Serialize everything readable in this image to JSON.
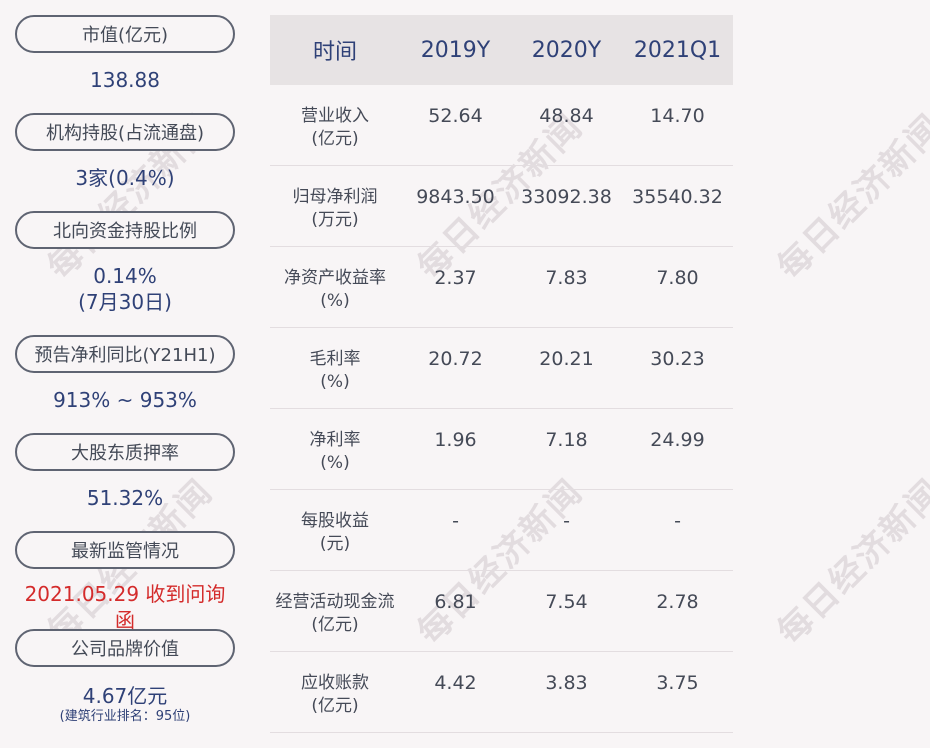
{
  "watermark_text": "每日经济新闻",
  "left_panel": {
    "items": [
      {
        "label": "市值(亿元)",
        "value": "138.88"
      },
      {
        "label": "机构持股(占流通盘)",
        "value": "3家(0.4%)"
      },
      {
        "label": "北向资金持股比例",
        "value": "0.14%",
        "value2": "(7月30日)"
      },
      {
        "label": "预告净利同比(Y21H1)",
        "value": "913% ~ 953%"
      },
      {
        "label": "大股东质押率",
        "value": "51.32%"
      },
      {
        "label": "最新监管情况",
        "value": "2021.05.29 收到问询函"
      },
      {
        "label": "公司品牌价值",
        "value": "4.67亿元",
        "note": "(建筑行业排名：95位)"
      }
    ]
  },
  "table": {
    "headers": [
      "时间",
      "2019Y",
      "2020Y",
      "2021Q1"
    ],
    "rows": [
      {
        "line1": "营业收入",
        "line2": "(亿元)",
        "values": [
          "52.64",
          "48.84",
          "14.70"
        ]
      },
      {
        "line1": "归母净利润",
        "line2": "(万元)",
        "values": [
          "9843.50",
          "33092.38",
          "35540.32"
        ]
      },
      {
        "line1": "净资产收益率",
        "line2": "(%)",
        "values": [
          "2.37",
          "7.83",
          "7.80"
        ]
      },
      {
        "line1": "毛利率",
        "line2": "(%)",
        "values": [
          "20.72",
          "20.21",
          "30.23"
        ]
      },
      {
        "line1": "净利率",
        "line2": "(%)",
        "values": [
          "1.96",
          "7.18",
          "24.99"
        ]
      },
      {
        "line1": "每股收益",
        "line2": "(元)",
        "values": [
          "-",
          "-",
          "-"
        ]
      },
      {
        "line1": "经营活动现金流",
        "line2": "(亿元)",
        "values": [
          "6.81",
          "7.54",
          "2.78"
        ]
      },
      {
        "line1": "应收账款",
        "line2": "(亿元)",
        "values": [
          "4.42",
          "3.83",
          "3.75"
        ]
      }
    ]
  },
  "colors": {
    "accent": "#2f4177",
    "alert": "#d42b2b",
    "header_bg": "#e7e3e4"
  }
}
